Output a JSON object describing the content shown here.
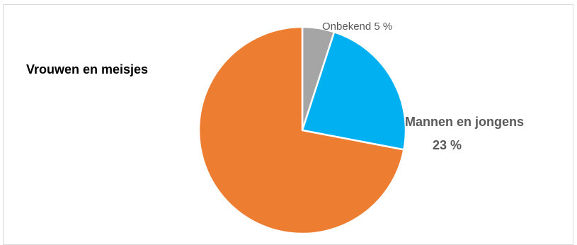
{
  "chart_data": {
    "type": "pie",
    "title": "",
    "slices": [
      {
        "label": "Onbekend",
        "value": 5,
        "color": "#a5a5a5"
      },
      {
        "label": "Mannen en jongens",
        "value": 23,
        "color": "#00b0f0"
      },
      {
        "label": "Vrouwen en meisjes",
        "value": 72,
        "color": "#ed7d31"
      }
    ],
    "data_labels": {
      "unknown": "Onbekend 5 %",
      "men_name": "Mannen en jongens",
      "men_value": "23 %",
      "women": "Vrouwen en meisjes"
    },
    "legend": "none",
    "start_angle": "12 o'clock, clockwise",
    "slice_border_color": "#ffffff"
  }
}
